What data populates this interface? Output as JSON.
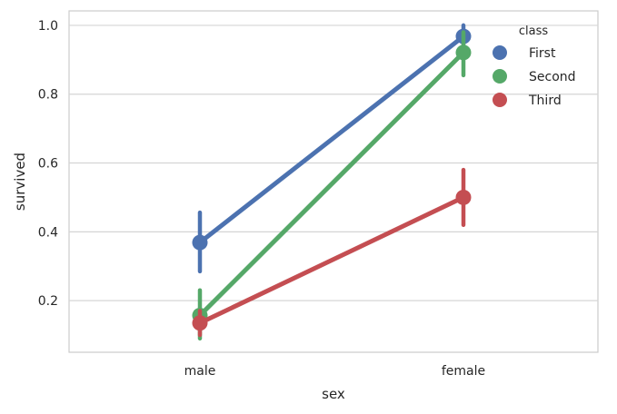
{
  "chart_data": {
    "type": "line",
    "subtype": "pointplot",
    "title": "",
    "xlabel": "sex",
    "ylabel": "survived",
    "categories": [
      "male",
      "female"
    ],
    "ylim": [
      0.05,
      1.042
    ],
    "yticks": [
      0.2,
      0.4,
      0.6,
      0.8,
      1.0
    ],
    "ytick_labels": [
      "0.2",
      "0.4",
      "0.6",
      "0.8",
      "1.0"
    ],
    "grid": true,
    "legend": {
      "title": "class",
      "placement": "top-right"
    },
    "series": [
      {
        "name": "First",
        "color": "#4c72b0",
        "values": [
          0.369,
          0.968
        ],
        "ci_low": [
          0.285,
          0.94
        ],
        "ci_high": [
          0.456,
          1.0
        ]
      },
      {
        "name": "Second",
        "color": "#55a868",
        "values": [
          0.157,
          0.921
        ],
        "ci_low": [
          0.09,
          0.855
        ],
        "ci_high": [
          0.23,
          0.98
        ]
      },
      {
        "name": "Third",
        "color": "#c44e52",
        "values": [
          0.135,
          0.5
        ],
        "ci_low": [
          0.1,
          0.42
        ],
        "ci_high": [
          0.17,
          0.58
        ]
      }
    ]
  }
}
